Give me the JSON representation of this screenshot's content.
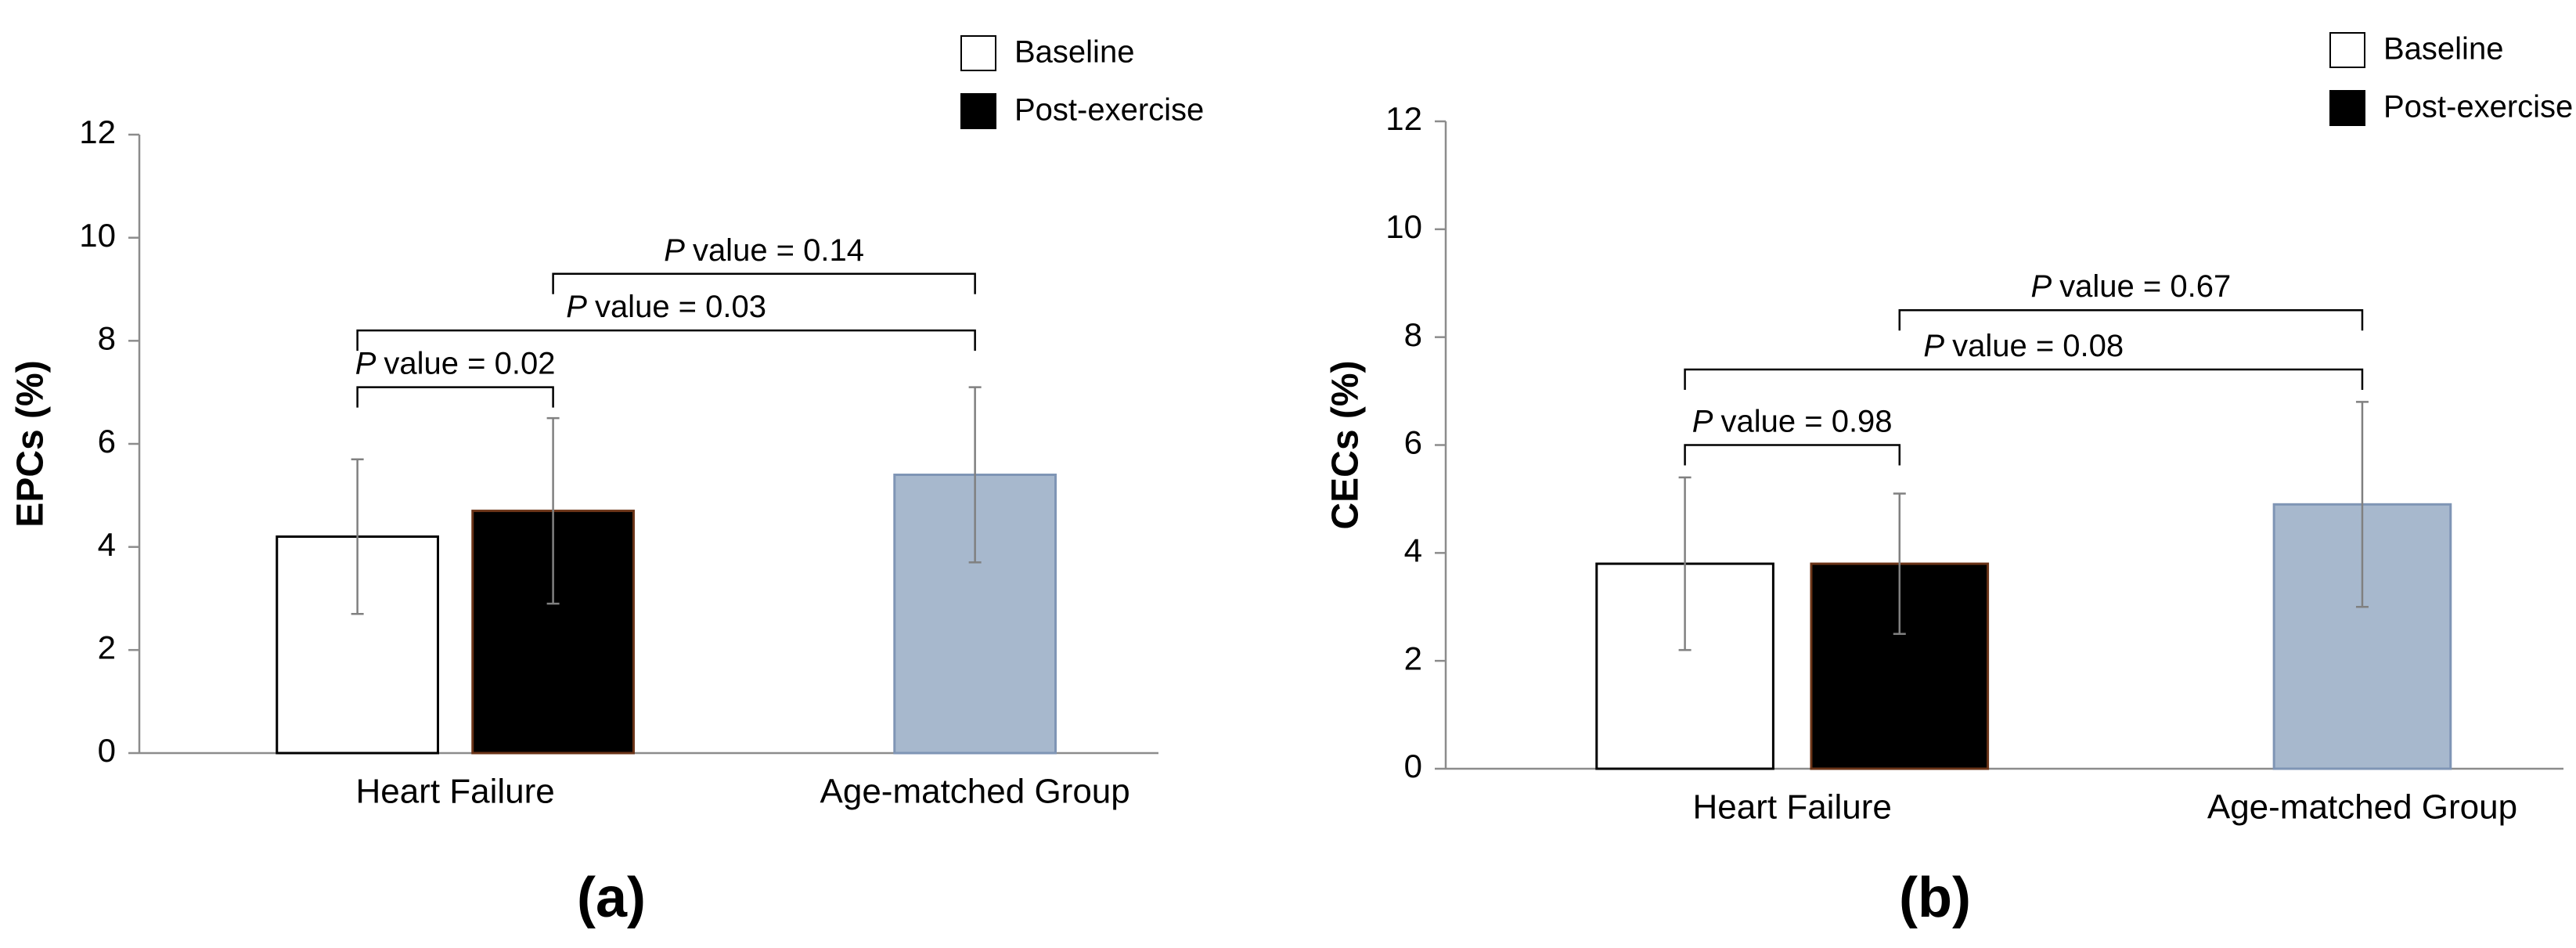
{
  "chart_data": [
    {
      "type": "bar",
      "y_label": "EPCs (%)",
      "panel_label": "(a)",
      "categories": [
        "Heart Failure",
        "Age-matched Group"
      ],
      "series": [
        {
          "name": "Baseline",
          "color": "#ffffff",
          "values": [
            4.2,
            null
          ],
          "errors": [
            1.5,
            null
          ]
        },
        {
          "name": "Post-exercise",
          "color": "#000000",
          "values": [
            4.7,
            null
          ],
          "errors": [
            1.8,
            null
          ]
        },
        {
          "color": "#a7b8cd",
          "values": [
            null,
            5.4
          ],
          "errors": [
            null,
            1.7
          ]
        }
      ],
      "ylim": [
        0,
        12
      ],
      "yticks": [
        0,
        2,
        4,
        6,
        8,
        10,
        12
      ],
      "annotations": [
        {
          "italic": "P",
          "text": "value = 0.02"
        },
        {
          "italic": "P",
          "text": "value = 0.03"
        },
        {
          "italic": "P",
          "text": "value = 0.14"
        }
      ]
    },
    {
      "type": "bar",
      "y_label": "CECs (%)",
      "panel_label": "(b)",
      "categories": [
        "Heart Failure",
        "Age-matched Group"
      ],
      "series": [
        {
          "name": "Baseline",
          "color": "#ffffff",
          "values": [
            3.8,
            null
          ],
          "errors": [
            1.6,
            null
          ]
        },
        {
          "name": "Post-exercise",
          "color": "#000000",
          "values": [
            3.8,
            null
          ],
          "errors": [
            1.3,
            null
          ]
        },
        {
          "color": "#a7b8cd",
          "values": [
            null,
            4.9
          ],
          "errors": [
            null,
            1.9
          ]
        }
      ],
      "ylim": [
        0,
        12
      ],
      "yticks": [
        0,
        2,
        4,
        6,
        8,
        10,
        12
      ],
      "annotations": [
        {
          "italic": "P",
          "text": "value = 0.98"
        },
        {
          "italic": "P",
          "text": "value = 0.08"
        },
        {
          "italic": "P",
          "text": "value = 0.67"
        }
      ]
    }
  ]
}
